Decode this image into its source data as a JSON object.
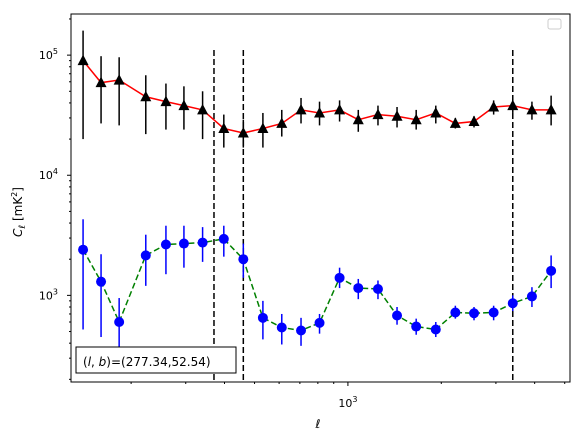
{
  "chart_data": {
    "type": "line",
    "xscale": "log",
    "yscale": "log",
    "xlim": [
      128,
      5200
    ],
    "ylim": [
      190,
      220000
    ],
    "xlabel": "ℓ",
    "ylabel": "C_ℓ  [mK²]",
    "x_tick_labels": [
      {
        "value": 1000,
        "base": "10",
        "exp": "3"
      }
    ],
    "y_tick_labels": [
      {
        "value": 1000,
        "base": "10",
        "exp": "3"
      },
      {
        "value": 10000,
        "base": "10",
        "exp": "4"
      },
      {
        "value": 100000,
        "base": "10",
        "exp": "5"
      }
    ],
    "grid": false,
    "legend": {
      "placement": "top-right",
      "entries": []
    },
    "vlines": [
      370,
      460,
      3400
    ],
    "annotation": "(l, b)=(277.34,52.54)",
    "series": [
      {
        "color": "#ff0000",
        "linestyle": "solid",
        "marker": "triangle",
        "marker_color": "#000000",
        "errorbar_color": "#000000",
        "points": [
          {
            "x": 140,
            "y": 90000,
            "lo": 20000,
            "hi": 160000
          },
          {
            "x": 160,
            "y": 59000,
            "lo": 27000,
            "hi": 98000
          },
          {
            "x": 183,
            "y": 62000,
            "lo": 26000,
            "hi": 96000
          },
          {
            "x": 223,
            "y": 45000,
            "lo": 22000,
            "hi": 68000
          },
          {
            "x": 259,
            "y": 41000,
            "lo": 24000,
            "hi": 58000
          },
          {
            "x": 296,
            "y": 38000,
            "lo": 24000,
            "hi": 55000
          },
          {
            "x": 340,
            "y": 35000,
            "lo": 20000,
            "hi": 50000
          },
          {
            "x": 398,
            "y": 24500,
            "lo": 17000,
            "hi": 32000
          },
          {
            "x": 460,
            "y": 22500,
            "lo": 17000,
            "hi": 29000
          },
          {
            "x": 532,
            "y": 24500,
            "lo": 17000,
            "hi": 33000
          },
          {
            "x": 612,
            "y": 27000,
            "lo": 21000,
            "hi": 35000
          },
          {
            "x": 706,
            "y": 35000,
            "lo": 27000,
            "hi": 44000
          },
          {
            "x": 810,
            "y": 33000,
            "lo": 26000,
            "hi": 41000
          },
          {
            "x": 940,
            "y": 35000,
            "lo": 28000,
            "hi": 42000
          },
          {
            "x": 1080,
            "y": 29000,
            "lo": 23000,
            "hi": 35000
          },
          {
            "x": 1250,
            "y": 32000,
            "lo": 26000,
            "hi": 38000
          },
          {
            "x": 1440,
            "y": 31000,
            "lo": 25000,
            "hi": 37000
          },
          {
            "x": 1660,
            "y": 29000,
            "lo": 24000,
            "hi": 35000
          },
          {
            "x": 1920,
            "y": 33000,
            "lo": 27000,
            "hi": 38000
          },
          {
            "x": 2220,
            "y": 27000,
            "lo": 24500,
            "hi": 30000
          },
          {
            "x": 2550,
            "y": 28000,
            "lo": 25000,
            "hi": 31000
          },
          {
            "x": 2950,
            "y": 37000,
            "lo": 32000,
            "hi": 42000
          },
          {
            "x": 3400,
            "y": 38000,
            "lo": 33000,
            "hi": 43000
          },
          {
            "x": 3920,
            "y": 35000,
            "lo": 29000,
            "hi": 41000
          },
          {
            "x": 4520,
            "y": 35000,
            "lo": 26000,
            "hi": 46000
          }
        ]
      },
      {
        "color": "#008000",
        "linestyle": "dashed",
        "marker": "circle",
        "marker_color": "#0000ff",
        "errorbar_color": "#0000ff",
        "points": [
          {
            "x": 140,
            "y": 2400,
            "lo": 520,
            "hi": 4300
          },
          {
            "x": 160,
            "y": 1300,
            "lo": 450,
            "hi": 2200
          },
          {
            "x": 183,
            "y": 600,
            "lo": 300,
            "hi": 950
          },
          {
            "x": 223,
            "y": 2150,
            "lo": 1200,
            "hi": 3200
          },
          {
            "x": 259,
            "y": 2650,
            "lo": 1500,
            "hi": 3800
          },
          {
            "x": 296,
            "y": 2700,
            "lo": 1700,
            "hi": 3800
          },
          {
            "x": 340,
            "y": 2750,
            "lo": 1900,
            "hi": 3700
          },
          {
            "x": 398,
            "y": 2950,
            "lo": 2100,
            "hi": 3800
          },
          {
            "x": 460,
            "y": 2000,
            "lo": 1400,
            "hi": 2700
          },
          {
            "x": 532,
            "y": 650,
            "lo": 430,
            "hi": 900
          },
          {
            "x": 612,
            "y": 540,
            "lo": 390,
            "hi": 700
          },
          {
            "x": 706,
            "y": 510,
            "lo": 380,
            "hi": 650
          },
          {
            "x": 810,
            "y": 590,
            "lo": 480,
            "hi": 700
          },
          {
            "x": 940,
            "y": 1400,
            "lo": 1150,
            "hi": 1700
          },
          {
            "x": 1080,
            "y": 1150,
            "lo": 930,
            "hi": 1370
          },
          {
            "x": 1250,
            "y": 1130,
            "lo": 930,
            "hi": 1330
          },
          {
            "x": 1440,
            "y": 680,
            "lo": 570,
            "hi": 800
          },
          {
            "x": 1660,
            "y": 550,
            "lo": 470,
            "hi": 640
          },
          {
            "x": 1920,
            "y": 520,
            "lo": 450,
            "hi": 600
          },
          {
            "x": 2220,
            "y": 720,
            "lo": 640,
            "hi": 820
          },
          {
            "x": 2550,
            "y": 710,
            "lo": 620,
            "hi": 800
          },
          {
            "x": 2950,
            "y": 720,
            "lo": 620,
            "hi": 820
          },
          {
            "x": 3400,
            "y": 860,
            "lo": 740,
            "hi": 1000
          },
          {
            "x": 3920,
            "y": 980,
            "lo": 800,
            "hi": 1170
          },
          {
            "x": 4520,
            "y": 1600,
            "lo": 1150,
            "hi": 2150
          }
        ]
      }
    ]
  }
}
